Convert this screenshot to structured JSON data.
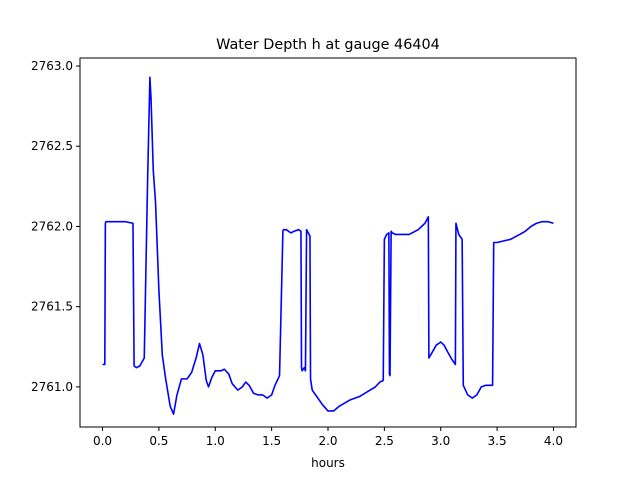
{
  "chart_data": {
    "type": "line",
    "title": "Water Depth h at gauge 46404",
    "xlabel": "hours",
    "ylabel": "",
    "xlim": [
      -0.2,
      4.2
    ],
    "ylim": [
      2760.75,
      2763.05
    ],
    "xticks": [
      0.0,
      0.5,
      1.0,
      1.5,
      2.0,
      2.5,
      3.0,
      3.5,
      4.0
    ],
    "xtick_labels": [
      "0.0",
      "0.5",
      "1.0",
      "1.5",
      "2.0",
      "2.5",
      "3.0",
      "3.5",
      "4.0"
    ],
    "yticks": [
      2761.0,
      2761.5,
      2762.0,
      2762.5,
      2763.0
    ],
    "ytick_labels": [
      "2761.0",
      "2761.5",
      "2762.0",
      "2762.5",
      "2763.0"
    ],
    "grid": false,
    "series": [
      {
        "color": "#0000ff",
        "x": [
          0.0,
          0.02,
          0.025,
          0.03,
          0.1,
          0.2,
          0.27,
          0.28,
          0.3,
          0.33,
          0.37,
          0.4,
          0.42,
          0.43,
          0.45,
          0.47,
          0.5,
          0.53,
          0.56,
          0.6,
          0.63,
          0.66,
          0.7,
          0.75,
          0.79,
          0.83,
          0.86,
          0.89,
          0.92,
          0.94,
          0.97,
          1.0,
          1.02,
          1.05,
          1.08,
          1.12,
          1.15,
          1.2,
          1.24,
          1.27,
          1.3,
          1.34,
          1.38,
          1.42,
          1.46,
          1.5,
          1.53,
          1.57,
          1.6,
          1.605,
          1.63,
          1.67,
          1.7,
          1.74,
          1.76,
          1.765,
          1.77,
          1.79,
          1.8,
          1.81,
          1.84,
          1.845,
          1.86,
          1.9,
          1.95,
          2.0,
          2.05,
          2.1,
          2.15,
          2.2,
          2.28,
          2.35,
          2.42,
          2.46,
          2.49,
          2.5,
          2.52,
          2.54,
          2.545,
          2.55,
          2.56,
          2.57,
          2.6,
          2.65,
          2.72,
          2.8,
          2.86,
          2.89,
          2.895,
          2.92,
          2.96,
          3.0,
          3.03,
          3.06,
          3.1,
          3.13,
          3.135,
          3.16,
          3.19,
          3.2,
          3.24,
          3.28,
          3.32,
          3.36,
          3.4,
          3.46,
          3.47,
          3.5,
          3.56,
          3.62,
          3.7,
          3.75,
          3.8,
          3.85,
          3.9,
          3.95,
          4.0
        ],
        "y": [
          2761.14,
          2761.14,
          2762.02,
          2762.03,
          2762.03,
          2762.03,
          2762.02,
          2761.13,
          2761.12,
          2761.13,
          2761.18,
          2762.3,
          2762.93,
          2762.8,
          2762.35,
          2762.15,
          2761.6,
          2761.2,
          2761.05,
          2760.88,
          2760.83,
          2760.95,
          2761.05,
          2761.05,
          2761.09,
          2761.18,
          2761.27,
          2761.2,
          2761.04,
          2761.0,
          2761.06,
          2761.1,
          2761.1,
          2761.1,
          2761.11,
          2761.08,
          2761.02,
          2760.98,
          2761.0,
          2761.03,
          2761.01,
          2760.96,
          2760.95,
          2760.95,
          2760.93,
          2760.95,
          2761.01,
          2761.07,
          2761.97,
          2761.98,
          2761.98,
          2761.96,
          2761.97,
          2761.98,
          2761.97,
          2761.12,
          2761.1,
          2761.12,
          2761.1,
          2761.98,
          2761.94,
          2761.05,
          2760.98,
          2760.94,
          2760.89,
          2760.85,
          2760.85,
          2760.88,
          2760.9,
          2760.92,
          2760.94,
          2760.97,
          2761.0,
          2761.03,
          2761.04,
          2761.92,
          2761.95,
          2761.96,
          2761.08,
          2761.07,
          2761.97,
          2761.96,
          2761.95,
          2761.95,
          2761.95,
          2761.98,
          2762.02,
          2762.06,
          2761.18,
          2761.21,
          2761.26,
          2761.28,
          2761.26,
          2761.22,
          2761.17,
          2761.14,
          2762.02,
          2761.95,
          2761.92,
          2761.01,
          2760.95,
          2760.93,
          2760.95,
          2761.0,
          2761.01,
          2761.01,
          2761.9,
          2761.9,
          2761.91,
          2761.92,
          2761.95,
          2761.97,
          2762.0,
          2762.02,
          2762.03,
          2762.03,
          2762.02
        ]
      }
    ]
  }
}
